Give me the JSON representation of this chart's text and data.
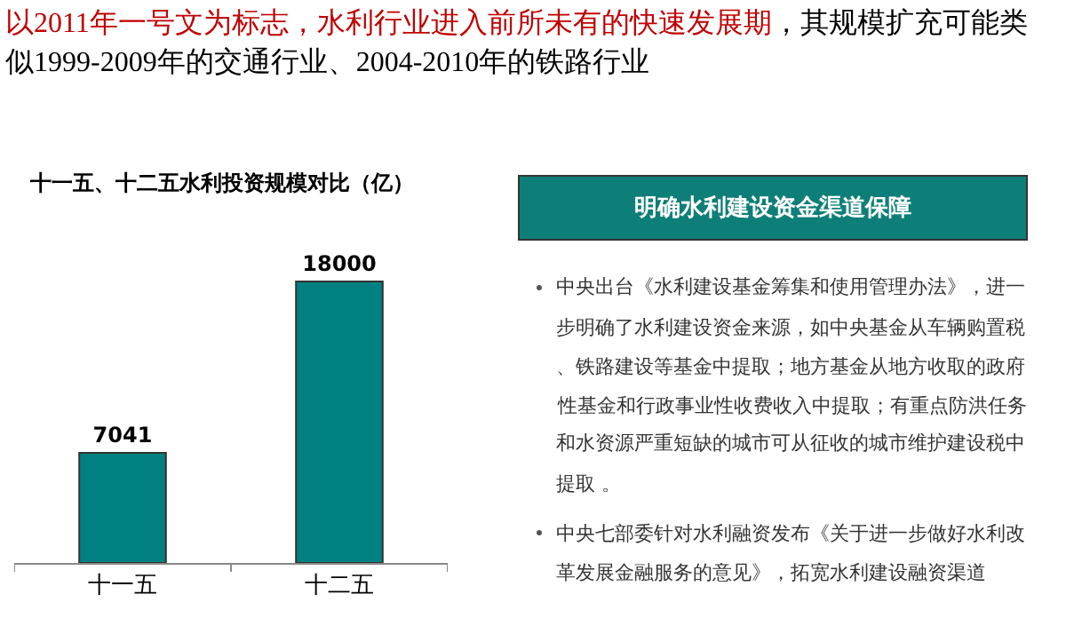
{
  "chart_data": [
    {
      "type": "bar",
      "title": "十一五、十二五水利投资规模对比（亿）",
      "categories": [
        "十一五",
        "十二五"
      ],
      "values": [
        7041,
        18000
      ],
      "color": "#008080",
      "data_labels": true,
      "tick_labels": "x",
      "annotations": [
        "以2011年一号文为标志，水利行业进入前所未有的快速发展期",
        "，其规模扩充可能类似1999-2009年的交通行业、2004-2010年的铁路行业"
      ]
    },
    {
      "type": "other",
      "title": "明确水利建设资金渠道保障",
      "color": "#0e7f78",
      "annotations": [
        "中央出台《水利建设基金筹集和使用管理办法》，进一步明确了水利建设资金来源，如中央基金从车辆购置税、铁路建设等基金中提取；地方基金从地方收取的政府性基金和行政事业性收费收入中提取；有重点防洪任务和水资源严重短缺的城市可从征收的城市维护建设税中提取 。",
        "中央七部委针对水利融资发布《关于进一步做好水利改革发展金融服务的意见》，拓宽水利建设融资渠道"
      ]
    }
  ]
}
